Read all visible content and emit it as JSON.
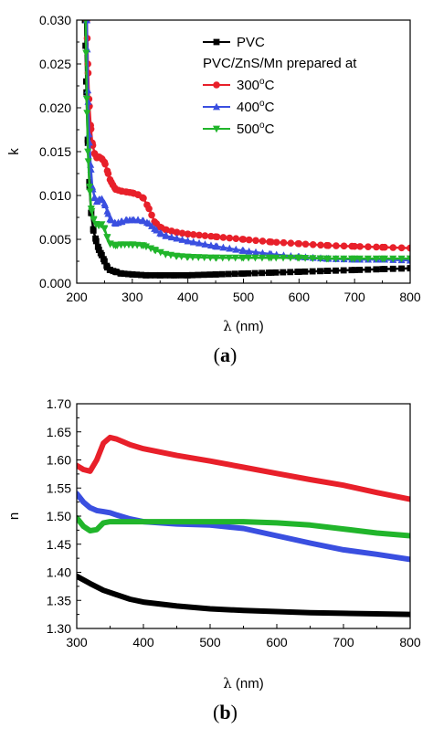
{
  "chart_data": [
    {
      "type": "line",
      "panel_label": {
        "open": "(",
        "letter": "a",
        "close": ")"
      },
      "xlabel": {
        "symbol": "λ",
        "unit": " (nm)"
      },
      "ylabel": "k",
      "xlim": [
        200,
        800
      ],
      "ylim": [
        0,
        0.03
      ],
      "xticks": [
        "200",
        "300",
        "400",
        "500",
        "600",
        "700",
        "800"
      ],
      "yticks": [
        "0.000",
        "0.005",
        "0.010",
        "0.015",
        "0.020",
        "0.025",
        "0.030"
      ],
      "grid": false,
      "legend_position": "top-right",
      "legend_group_title": "PVC/ZnS/Mn prepared at",
      "series": [
        {
          "name": "PVC",
          "color": "#000000",
          "marker": "square",
          "x": [
            215,
            217,
            220,
            223,
            226,
            230,
            235,
            240,
            245,
            250,
            255,
            260,
            270,
            280,
            300,
            325,
            350,
            375,
            400,
            450,
            500,
            550,
            600,
            650,
            700,
            750,
            800
          ],
          "y": [
            0.03,
            0.023,
            0.016,
            0.011,
            0.008,
            0.006,
            0.0048,
            0.0038,
            0.0032,
            0.0025,
            0.0018,
            0.0015,
            0.0013,
            0.0011,
            0.001,
            0.0009,
            0.0009,
            0.0009,
            0.0009,
            0.001,
            0.0011,
            0.0012,
            0.0013,
            0.0014,
            0.0015,
            0.0016,
            0.0017
          ]
        },
        {
          "name": "300",
          "name_sup": "o",
          "name_unit": "C",
          "color": "#e8202a",
          "marker": "circle",
          "x": [
            218,
            220,
            222,
            225,
            228,
            232,
            236,
            240,
            245,
            250,
            255,
            260,
            265,
            270,
            280,
            290,
            300,
            310,
            320,
            330,
            340,
            350,
            360,
            380,
            400,
            450,
            500,
            550,
            600,
            650,
            700,
            750,
            800
          ],
          "y": [
            0.03,
            0.025,
            0.021,
            0.018,
            0.016,
            0.0148,
            0.0143,
            0.0144,
            0.0142,
            0.0138,
            0.0128,
            0.0118,
            0.0112,
            0.0107,
            0.0105,
            0.0104,
            0.0103,
            0.0101,
            0.0097,
            0.0085,
            0.007,
            0.0064,
            0.0061,
            0.0058,
            0.0056,
            0.0053,
            0.005,
            0.0047,
            0.0045,
            0.0043,
            0.0042,
            0.0041,
            0.004
          ]
        },
        {
          "name": "400",
          "name_sup": "o",
          "name_unit": "C",
          "color": "#3a4fe0",
          "marker": "triangle-up",
          "x": [
            218,
            220,
            222,
            225,
            228,
            232,
            236,
            240,
            245,
            250,
            255,
            260,
            270,
            280,
            290,
            300,
            310,
            320,
            330,
            340,
            350,
            360,
            380,
            400,
            450,
            500,
            550,
            600,
            650,
            700,
            750,
            800
          ],
          "y": [
            0.03,
            0.022,
            0.017,
            0.0135,
            0.011,
            0.0098,
            0.0093,
            0.0095,
            0.0096,
            0.0091,
            0.0082,
            0.0073,
            0.0068,
            0.007,
            0.0072,
            0.0072,
            0.0072,
            0.0071,
            0.0068,
            0.0062,
            0.0057,
            0.0054,
            0.0051,
            0.0048,
            0.0042,
            0.0037,
            0.0033,
            0.003,
            0.0028,
            0.0027,
            0.0027,
            0.0026
          ]
        },
        {
          "name": "500",
          "name_sup": "o",
          "name_unit": "C",
          "color": "#21b52b",
          "marker": "triangle-down",
          "x": [
            216,
            218,
            220,
            223,
            226,
            230,
            235,
            240,
            245,
            250,
            255,
            260,
            270,
            280,
            300,
            320,
            340,
            360,
            380,
            400,
            450,
            500,
            550,
            600,
            650,
            700,
            750,
            800
          ],
          "y": [
            0.03,
            0.021,
            0.015,
            0.011,
            0.0085,
            0.0073,
            0.0067,
            0.0066,
            0.0067,
            0.0062,
            0.0052,
            0.0045,
            0.0043,
            0.0044,
            0.0044,
            0.0043,
            0.0038,
            0.0033,
            0.0031,
            0.003,
            0.0029,
            0.0029,
            0.0029,
            0.0029,
            0.0028,
            0.0028,
            0.0028,
            0.0028
          ]
        }
      ]
    },
    {
      "type": "line",
      "panel_label": {
        "open": "(",
        "letter": "b",
        "close": ")"
      },
      "xlabel": {
        "symbol": "λ",
        "unit": " (nm)"
      },
      "ylabel": "n",
      "xlim": [
        300,
        800
      ],
      "ylim": [
        1.3,
        1.7
      ],
      "xticks": [
        "300",
        "400",
        "500",
        "600",
        "700",
        "800"
      ],
      "yticks": [
        "1.30",
        "1.35",
        "1.40",
        "1.45",
        "1.50",
        "1.55",
        "1.60",
        "1.65",
        "1.70"
      ],
      "grid": false,
      "series": [
        {
          "name": "PVC",
          "color": "#000000",
          "x": [
            300,
            320,
            340,
            360,
            380,
            400,
            450,
            500,
            550,
            600,
            650,
            700,
            750,
            800
          ],
          "y": [
            1.393,
            1.38,
            1.368,
            1.36,
            1.352,
            1.347,
            1.34,
            1.335,
            1.332,
            1.33,
            1.328,
            1.327,
            1.326,
            1.325
          ]
        },
        {
          "name": "300 °C",
          "color": "#e8202a",
          "x": [
            300,
            310,
            320,
            330,
            340,
            350,
            360,
            370,
            380,
            400,
            450,
            500,
            550,
            600,
            650,
            700,
            750,
            800
          ],
          "y": [
            1.59,
            1.583,
            1.58,
            1.6,
            1.63,
            1.64,
            1.637,
            1.632,
            1.627,
            1.62,
            1.608,
            1.598,
            1.587,
            1.576,
            1.565,
            1.555,
            1.542,
            1.53
          ]
        },
        {
          "name": "400 °C",
          "color": "#3a4fe0",
          "x": [
            300,
            310,
            320,
            330,
            340,
            350,
            360,
            380,
            400,
            450,
            500,
            550,
            600,
            650,
            700,
            750,
            800
          ],
          "y": [
            1.54,
            1.525,
            1.515,
            1.51,
            1.508,
            1.506,
            1.502,
            1.495,
            1.49,
            1.486,
            1.484,
            1.478,
            1.465,
            1.452,
            1.44,
            1.432,
            1.423
          ]
        },
        {
          "name": "500 °C",
          "color": "#21b52b",
          "x": [
            300,
            310,
            320,
            330,
            340,
            350,
            360,
            380,
            400,
            450,
            500,
            550,
            600,
            650,
            700,
            750,
            800
          ],
          "y": [
            1.497,
            1.482,
            1.474,
            1.476,
            1.488,
            1.49,
            1.49,
            1.49,
            1.49,
            1.49,
            1.49,
            1.49,
            1.488,
            1.484,
            1.477,
            1.47,
            1.465
          ]
        }
      ]
    }
  ]
}
